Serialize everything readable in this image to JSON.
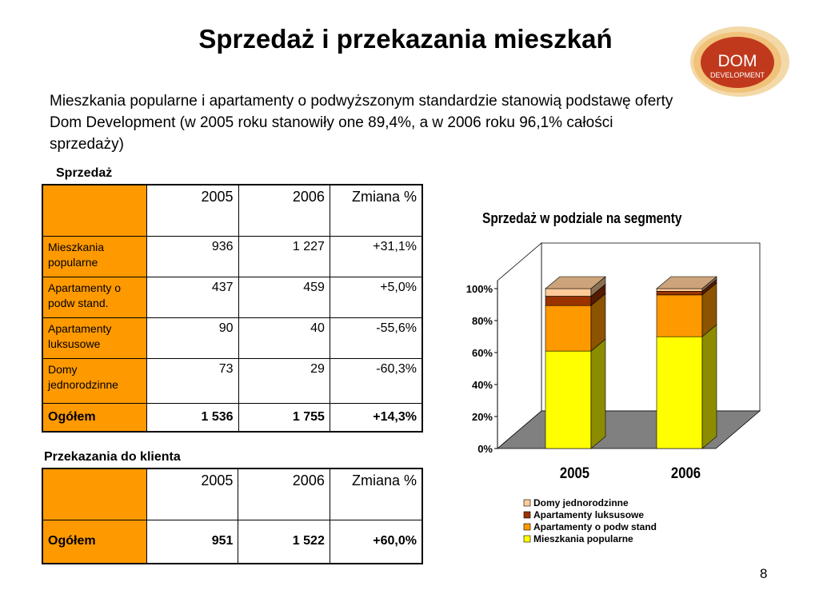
{
  "slide": {
    "title": "Sprzedaż i przekazania mieszkań",
    "intro": "Mieszkania popularne i apartamenty o podwyższonym standardzie stanowią podstawę oferty Dom Development (w 2005 roku stanowiły one 89,4%, a w 2006 roku 96,1% całości sprzedaży)",
    "page_number": "8",
    "logo": {
      "line1": "DOM",
      "line2": "DEVELOPMENT"
    }
  },
  "sales_table": {
    "caption": "Sprzedaż",
    "headers": [
      "",
      "2005",
      "2006",
      "Zmiana %"
    ],
    "rows": [
      {
        "label": "Mieszkania popularne",
        "v2005": "936",
        "v2006": "1 227",
        "change": "+31,1%"
      },
      {
        "label": "Apartamenty o podw stand.",
        "v2005": "437",
        "v2006": "459",
        "change": "+5,0%"
      },
      {
        "label": "Apartamenty luksusowe",
        "v2005": "90",
        "v2006": "40",
        "change": "-55,6%"
      },
      {
        "label": "Domy jednorodzinne",
        "v2005": "73",
        "v2006": "29",
        "change": "-60,3%"
      }
    ],
    "total": {
      "label": "Ogółem",
      "v2005": "1 536",
      "v2006": "1 755",
      "change": "+14,3%"
    }
  },
  "handover_table": {
    "caption": "Przekazania do klienta",
    "headers": [
      "",
      "2005",
      "2006",
      "Zmiana %"
    ],
    "total": {
      "label": "Ogółem",
      "v2005": "951",
      "v2006": "1 522",
      "change": "+60,0%"
    }
  },
  "chart_data": {
    "type": "bar",
    "stacked": "percent",
    "title": "Sprzedaż w podziale na segmenty",
    "categories": [
      "2005",
      "2006"
    ],
    "series": [
      {
        "name": "Mieszkania popularne",
        "values": [
          936,
          1227
        ],
        "color": "#ffff00"
      },
      {
        "name": "Apartamenty o podw stand",
        "values": [
          437,
          459
        ],
        "color": "#ff9900"
      },
      {
        "name": "Apartamenty luksusowe",
        "values": [
          90,
          40
        ],
        "color": "#993300"
      },
      {
        "name": "Domy jednorodzinne",
        "values": [
          73,
          29
        ],
        "color": "#ffcc99"
      }
    ],
    "ylim": [
      0,
      100
    ],
    "yticks": [
      "0%",
      "20%",
      "40%",
      "60%",
      "80%",
      "100%"
    ],
    "legend_position": "bottom",
    "legend_order": [
      "Domy jednorodzinne",
      "Apartamenty luksusowe",
      "Apartamenty o podw stand",
      "Mieszkania popularne"
    ]
  }
}
